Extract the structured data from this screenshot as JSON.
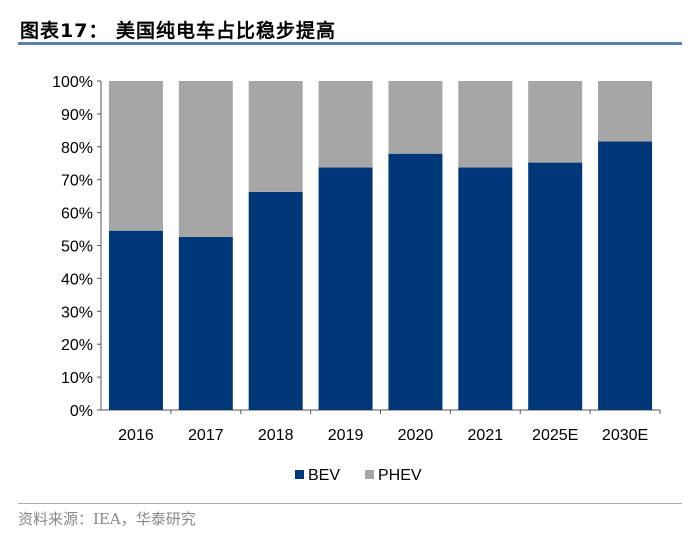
{
  "title": "图表17：  美国纯电车占比稳步提高",
  "source": "资料来源：IEA，华泰研究",
  "chart_data": {
    "type": "bar",
    "stacked": true,
    "percent": true,
    "categories": [
      "2016",
      "2017",
      "2018",
      "2019",
      "2020",
      "2021",
      "2025E",
      "2030E"
    ],
    "series": [
      {
        "name": "BEV",
        "color": "#003778",
        "values": [
          54.5,
          52.6,
          66.3,
          73.7,
          77.9,
          73.7,
          75.2,
          81.6
        ]
      },
      {
        "name": "PHEV",
        "color": "#a6a6a6",
        "values": [
          45.5,
          47.4,
          33.7,
          26.3,
          22.1,
          26.3,
          24.8,
          18.4
        ]
      }
    ],
    "yticks": [
      "0%",
      "10%",
      "20%",
      "30%",
      "40%",
      "50%",
      "60%",
      "70%",
      "80%",
      "90%",
      "100%"
    ],
    "ylim": [
      0,
      100
    ],
    "grid": false,
    "legend": "bottom"
  }
}
